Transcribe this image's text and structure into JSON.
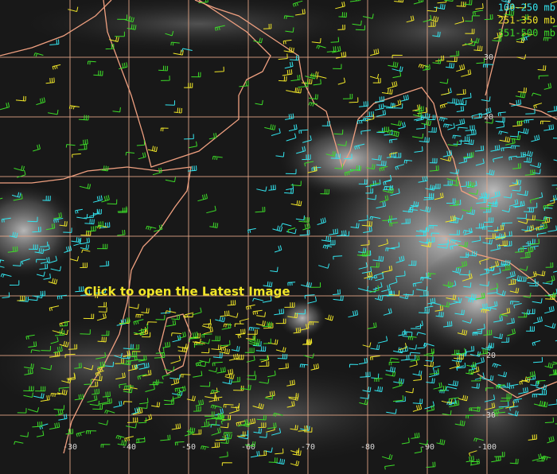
{
  "legend": [
    {
      "label": "100-250 mb",
      "color": "#33e6f0"
    },
    {
      "label": "251-350 mb",
      "color": "#f0e628"
    },
    {
      "label": "351-500 mb",
      "color": "#3cdc28"
    }
  ],
  "link": {
    "text": "Click to open the  Latest Image"
  },
  "latitude_labels": [
    "30",
    "20",
    "-20",
    "-30"
  ],
  "longitude_labels": [
    "-30",
    "-40",
    "-50",
    "-60",
    "-70",
    "-80",
    "-90",
    "-100"
  ]
}
